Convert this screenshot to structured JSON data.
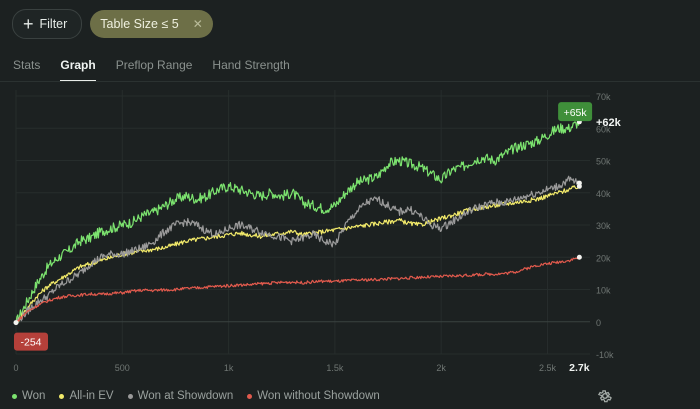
{
  "filters": {
    "filter_button_label": "Filter",
    "chip_label": "Table Size ≤ 5",
    "chip_close": "✕"
  },
  "tabs": [
    {
      "label": "Stats",
      "active": false
    },
    {
      "label": "Graph",
      "active": true
    },
    {
      "label": "Preflop Range",
      "active": false
    },
    {
      "label": "Hand Strength",
      "active": false
    }
  ],
  "colors": {
    "won": "#7ce36f",
    "allin_ev": "#f2ea6a",
    "showdown": "#9a9a9a",
    "no_showdown": "#e15a4d"
  },
  "chart_data": {
    "type": "line",
    "title": "",
    "xlabel": "",
    "ylabel": "",
    "xlim": [
      0,
      2700
    ],
    "ylim": [
      -10000,
      70000
    ],
    "x_ticks": [
      "0",
      "500",
      "1k",
      "1.5k",
      "2k",
      "2.5k"
    ],
    "x_end_label": "2.7k",
    "y_ticks": [
      "70k",
      "60k",
      "50k",
      "40k",
      "30k",
      "20k",
      "10k",
      "0",
      "-10k"
    ],
    "grid": true,
    "legend_position": "bottom-left",
    "series": [
      {
        "name": "Won",
        "color_key": "won",
        "x": [
          0,
          50,
          100,
          150,
          200,
          250,
          300,
          350,
          400,
          450,
          500,
          550,
          600,
          650,
          700,
          750,
          800,
          850,
          900,
          950,
          1000,
          1050,
          1100,
          1150,
          1200,
          1250,
          1300,
          1350,
          1400,
          1450,
          1500,
          1550,
          1600,
          1650,
          1700,
          1750,
          1800,
          1850,
          1900,
          1950,
          2000,
          2050,
          2100,
          2150,
          2200,
          2250,
          2300,
          2350,
          2400,
          2450,
          2500,
          2550,
          2600,
          2650
        ],
        "y": [
          -254,
          6000,
          12000,
          17000,
          20000,
          22000,
          25000,
          26000,
          28000,
          29000,
          30000,
          31000,
          33000,
          34000,
          36000,
          38000,
          39000,
          38000,
          39000,
          41000,
          42000,
          41000,
          40000,
          39000,
          40000,
          39000,
          40000,
          37000,
          36000,
          35000,
          36000,
          40000,
          43000,
          44000,
          45000,
          49000,
          50000,
          49000,
          48000,
          46000,
          44000,
          47000,
          48000,
          50000,
          51000,
          50000,
          52000,
          54000,
          55000,
          56000,
          58000,
          60000,
          60000,
          62000
        ]
      },
      {
        "name": "All-in EV",
        "color_key": "allin_ev",
        "x": [
          0,
          50,
          100,
          150,
          200,
          250,
          300,
          350,
          400,
          450,
          500,
          550,
          600,
          650,
          700,
          750,
          800,
          850,
          900,
          950,
          1000,
          1050,
          1100,
          1150,
          1200,
          1250,
          1300,
          1350,
          1400,
          1450,
          1500,
          1550,
          1600,
          1650,
          1700,
          1750,
          1800,
          1850,
          1900,
          1950,
          2000,
          2050,
          2100,
          2150,
          2200,
          2250,
          2300,
          2350,
          2400,
          2450,
          2500,
          2550,
          2600,
          2650
        ],
        "y": [
          -254,
          4000,
          8000,
          11000,
          13000,
          15000,
          17000,
          18000,
          19000,
          20000,
          21000,
          21500,
          22000,
          22500,
          23000,
          24000,
          25000,
          25500,
          26000,
          26500,
          27000,
          27500,
          27000,
          26500,
          27000,
          27500,
          28000,
          27000,
          27500,
          28000,
          28500,
          29000,
          29500,
          30000,
          30500,
          31000,
          31500,
          30500,
          30000,
          31000,
          32000,
          33000,
          34000,
          35000,
          35500,
          36000,
          36500,
          37000,
          37500,
          38000,
          39000,
          40000,
          41000,
          42000
        ]
      },
      {
        "name": "Won at Showdown",
        "color_key": "showdown",
        "x": [
          0,
          50,
          100,
          150,
          200,
          250,
          300,
          350,
          400,
          450,
          500,
          550,
          600,
          650,
          700,
          750,
          800,
          850,
          900,
          950,
          1000,
          1050,
          1100,
          1150,
          1200,
          1250,
          1300,
          1350,
          1400,
          1450,
          1500,
          1550,
          1600,
          1650,
          1700,
          1750,
          1800,
          1850,
          1900,
          1950,
          2000,
          2050,
          2100,
          2150,
          2200,
          2250,
          2300,
          2350,
          2400,
          2450,
          2500,
          2550,
          2600,
          2650
        ],
        "y": [
          -254,
          3000,
          6000,
          8000,
          11000,
          13000,
          15000,
          18000,
          20000,
          21000,
          21000,
          22000,
          23000,
          25000,
          28000,
          30000,
          31000,
          30000,
          28000,
          27000,
          29000,
          30000,
          29000,
          28000,
          27000,
          26000,
          25000,
          26000,
          27000,
          25000,
          24000,
          30000,
          34000,
          37000,
          38000,
          36000,
          34000,
          35000,
          33000,
          30000,
          29000,
          31000,
          33000,
          35000,
          36000,
          37000,
          37000,
          38000,
          39000,
          40000,
          41000,
          42000,
          44000,
          43000
        ]
      },
      {
        "name": "Won without Showdown",
        "color_key": "no_showdown",
        "x": [
          0,
          50,
          100,
          150,
          200,
          250,
          300,
          350,
          400,
          450,
          500,
          550,
          600,
          650,
          700,
          750,
          800,
          850,
          900,
          950,
          1000,
          1050,
          1100,
          1150,
          1200,
          1250,
          1300,
          1350,
          1400,
          1450,
          1500,
          1550,
          1600,
          1650,
          1700,
          1750,
          1800,
          1850,
          1900,
          1950,
          2000,
          2050,
          2100,
          2150,
          2200,
          2250,
          2300,
          2350,
          2400,
          2450,
          2500,
          2550,
          2600,
          2650
        ],
        "y": [
          -254,
          3000,
          5000,
          6500,
          7500,
          8000,
          8300,
          8600,
          8500,
          8800,
          9000,
          9500,
          9800,
          9700,
          9900,
          10000,
          10300,
          10500,
          10800,
          11000,
          11200,
          11400,
          11500,
          11800,
          12000,
          12200,
          12300,
          12100,
          12400,
          12600,
          12500,
          12700,
          12900,
          13000,
          13100,
          13300,
          13400,
          13600,
          13800,
          13900,
          14000,
          14200,
          14300,
          14500,
          14700,
          14800,
          15000,
          15500,
          16500,
          17500,
          18000,
          18500,
          19000,
          20000
        ]
      }
    ],
    "end_labels": {
      "won_badge": "+65k",
      "won_end_value": "+62k",
      "start_badge": "-254"
    },
    "end_label_values": {
      "won_badge_y": 65000,
      "won_end_y": 62000,
      "start_y": -254
    }
  }
}
